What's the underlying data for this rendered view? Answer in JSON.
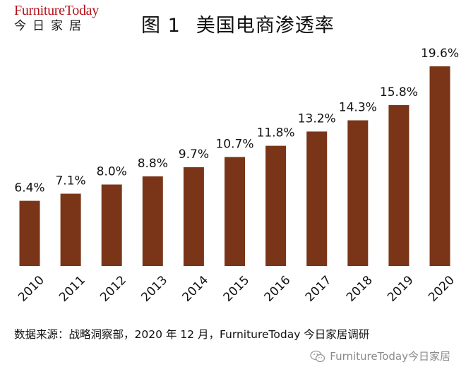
{
  "logo": {
    "brand": "FurnitureToday",
    "cn": "今日家居"
  },
  "title": {
    "figure": "图 1",
    "text": "美国电商渗透率"
  },
  "source": "数据来源：战略洞察部，2020 年 12 月，FurnitureToday 今日家居调研",
  "watermark": "FurnitureToday今日家居",
  "colors": {
    "bar": "#7a3518",
    "text": "#111111",
    "logo_red": "#b3121a"
  },
  "chart_data": {
    "type": "bar",
    "title": "美国电商渗透率",
    "categories": [
      "2010",
      "2011",
      "2012",
      "2013",
      "2014",
      "2015",
      "2016",
      "2017",
      "2018",
      "2019",
      "2020"
    ],
    "values": [
      6.4,
      7.1,
      8.0,
      8.8,
      9.7,
      10.7,
      11.8,
      13.2,
      14.3,
      15.8,
      19.6
    ],
    "value_labels": [
      "6.4%",
      "7.1%",
      "8.0%",
      "8.8%",
      "9.7%",
      "10.7%",
      "11.8%",
      "13.2%",
      "14.3%",
      "15.8%",
      "19.6%"
    ],
    "unit": "%",
    "xlabel": "",
    "ylabel": "",
    "ylim": [
      0,
      19.6
    ],
    "grid": false,
    "legend": "none"
  }
}
